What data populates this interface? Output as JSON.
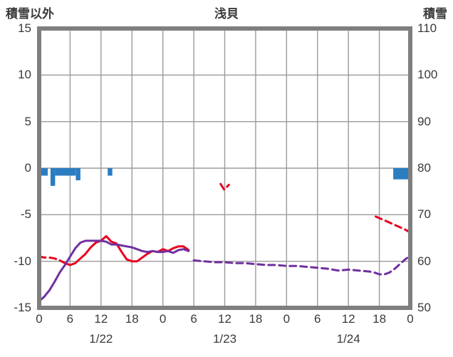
{
  "chart_data": {
    "type": "line",
    "title": "浅貝",
    "left_axis": {
      "label": "積雪以外",
      "min": -15,
      "max": 15,
      "tick_values": [
        15,
        10,
        5,
        0,
        -5,
        -10,
        -15
      ],
      "tick_labels": [
        "15",
        "10",
        "5",
        "0",
        "-5",
        "-10",
        "-15"
      ]
    },
    "right_axis": {
      "label": "積雪",
      "min": 50,
      "max": 110,
      "tick_values": [
        110,
        100,
        90,
        80,
        70,
        60,
        50
      ],
      "tick_labels": [
        "110",
        "100",
        "90",
        "80",
        "70",
        "60",
        "50"
      ]
    },
    "x_axis": {
      "min_hour": 0,
      "max_hour": 72,
      "tick_step": 6,
      "tick_labels": [
        "0",
        "6",
        "12",
        "18",
        "0",
        "6",
        "12",
        "18",
        "0",
        "6",
        "12",
        "18",
        "0"
      ],
      "day_labels": [
        {
          "text": "1/22",
          "hour": 12
        },
        {
          "text": "1/23",
          "hour": 36
        },
        {
          "text": "1/24",
          "hour": 60
        }
      ]
    },
    "grid": true,
    "colors": {
      "bar": "#2b7dc2",
      "red_line": "#e8001e",
      "purple_line": "#7030a0",
      "grid": "#9b9b9b",
      "frame": "#7f7f7f",
      "text": "#3a3a3a"
    },
    "series": [
      {
        "name": "precipitation",
        "type": "bar",
        "color": "#2b7dc2",
        "bars": [
          {
            "hour": 0.15,
            "width": 1.5,
            "value": -0.8
          },
          {
            "hour": 2.2,
            "width": 0.9,
            "value": -1.9
          },
          {
            "hour": 3.1,
            "width": 4.0,
            "value": -0.8
          },
          {
            "hour": 7.1,
            "width": 0.9,
            "value": -1.3
          },
          {
            "hour": 13.3,
            "width": 0.9,
            "value": -0.8
          },
          {
            "hour": 68.7,
            "width": 3.2,
            "value": -1.2
          }
        ]
      },
      {
        "name": "temperature-red",
        "type": "line",
        "color": "#e8001e",
        "width": 3,
        "segments": [
          {
            "dashed": true,
            "points": [
              [
                0,
                -9.5
              ],
              [
                1,
                -9.6
              ],
              [
                2,
                -9.6
              ],
              [
                3,
                -9.7
              ],
              [
                4,
                -9.9
              ]
            ]
          },
          {
            "dashed": false,
            "points": [
              [
                4,
                -9.9
              ],
              [
                5,
                -10.2
              ],
              [
                6,
                -10.4
              ],
              [
                7,
                -10.2
              ],
              [
                8,
                -9.7
              ],
              [
                9,
                -9.2
              ],
              [
                10,
                -8.5
              ],
              [
                11,
                -8.0
              ],
              [
                12,
                -7.8
              ],
              [
                13,
                -7.3
              ],
              [
                14,
                -7.9
              ],
              [
                15,
                -8.1
              ],
              [
                16,
                -9.0
              ],
              [
                17,
                -9.8
              ],
              [
                18,
                -10.0
              ],
              [
                19,
                -10.0
              ],
              [
                20,
                -9.6
              ],
              [
                21,
                -9.2
              ],
              [
                22,
                -8.9
              ],
              [
                23,
                -9.0
              ],
              [
                24,
                -8.7
              ],
              [
                25,
                -8.9
              ],
              [
                26,
                -8.6
              ],
              [
                27,
                -8.4
              ],
              [
                28,
                -8.4
              ],
              [
                29,
                -8.8
              ]
            ]
          },
          {
            "dashed": true,
            "points": [
              [
                35.2,
                -1.7
              ],
              [
                35.9,
                -2.3
              ],
              [
                36.8,
                -1.8
              ]
            ]
          },
          {
            "dashed": true,
            "points": [
              [
                65.3,
                -5.2
              ],
              [
                67,
                -5.6
              ],
              [
                69,
                -6.1
              ],
              [
                71,
                -6.6
              ],
              [
                72,
                -6.9
              ]
            ]
          }
        ]
      },
      {
        "name": "snow-purple",
        "type": "line",
        "color": "#7030a0",
        "width": 3,
        "segments": [
          {
            "dashed": false,
            "points": [
              [
                0.2,
                -14.2
              ],
              [
                1,
                -13.8
              ],
              [
                2,
                -13.1
              ],
              [
                3,
                -12.2
              ],
              [
                4,
                -11.2
              ],
              [
                5,
                -10.4
              ],
              [
                6,
                -9.5
              ],
              [
                7,
                -8.6
              ],
              [
                8,
                -8.0
              ],
              [
                9,
                -7.8
              ],
              [
                10,
                -7.8
              ],
              [
                11,
                -7.8
              ],
              [
                12,
                -7.8
              ],
              [
                13,
                -7.9
              ],
              [
                14,
                -8.2
              ],
              [
                15,
                -8.2
              ],
              [
                16,
                -8.3
              ],
              [
                17,
                -8.4
              ],
              [
                18,
                -8.5
              ],
              [
                19,
                -8.7
              ],
              [
                20,
                -8.9
              ],
              [
                21,
                -9.0
              ],
              [
                22,
                -8.9
              ],
              [
                23,
                -9.0
              ],
              [
                24,
                -9.0
              ],
              [
                25,
                -8.9
              ],
              [
                26,
                -9.1
              ],
              [
                27,
                -8.8
              ],
              [
                28,
                -8.7
              ],
              [
                29,
                -8.9
              ]
            ]
          },
          {
            "dashed": true,
            "points": [
              [
                30,
                -9.9
              ],
              [
                32,
                -10.0
              ],
              [
                34,
                -10.1
              ],
              [
                36,
                -10.1
              ],
              [
                38,
                -10.2
              ],
              [
                40,
                -10.2
              ],
              [
                42,
                -10.3
              ],
              [
                44,
                -10.4
              ],
              [
                46,
                -10.4
              ],
              [
                48,
                -10.5
              ],
              [
                50,
                -10.5
              ],
              [
                52,
                -10.6
              ],
              [
                54,
                -10.7
              ],
              [
                56,
                -10.8
              ],
              [
                58,
                -11.0
              ],
              [
                60,
                -10.9
              ],
              [
                62,
                -11.0
              ],
              [
                64,
                -11.1
              ],
              [
                65,
                -11.2
              ],
              [
                66,
                -11.4
              ],
              [
                67,
                -11.4
              ],
              [
                68,
                -11.2
              ],
              [
                69,
                -10.8
              ],
              [
                70,
                -10.3
              ],
              [
                71,
                -9.8
              ],
              [
                72,
                -9.4
              ]
            ]
          }
        ]
      }
    ]
  }
}
